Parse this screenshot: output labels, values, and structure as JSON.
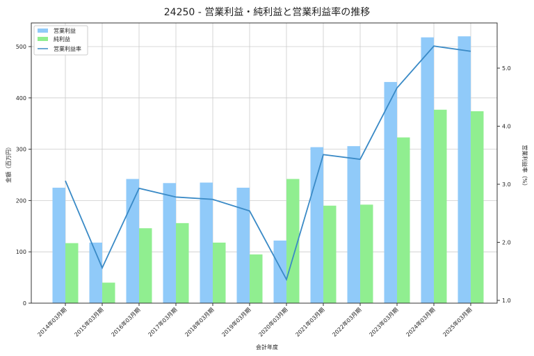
{
  "chart_data": {
    "type": "bar",
    "title": "24250 - 営業利益・純利益と営業利益率の推移",
    "xlabel": "会計年度",
    "ylabel": "金額（百万円）",
    "y2label": "営業利益率（%）",
    "categories": [
      "2014年03月期",
      "2015年03月期",
      "2016年03月期",
      "2017年03月期",
      "2018年03月期",
      "2019年03月期",
      "2020年03月期",
      "2021年03月期",
      "2022年03月期",
      "2023年03月期",
      "2024年03月期",
      "2025年03月期"
    ],
    "series": [
      {
        "name": "営業利益",
        "kind": "bar",
        "axis": "left",
        "color": "#90CAF9",
        "values": [
          225,
          118,
          242,
          234,
          235,
          225,
          122,
          304,
          306,
          431,
          518,
          520
        ]
      },
      {
        "name": "純利益",
        "kind": "bar",
        "axis": "left",
        "color": "#90EE90",
        "values": [
          117,
          40,
          146,
          156,
          118,
          95,
          242,
          190,
          192,
          323,
          377,
          374
        ]
      },
      {
        "name": "営業利益率",
        "kind": "line",
        "axis": "right",
        "color": "#3A8AC6",
        "values": [
          3.06,
          1.56,
          2.93,
          2.78,
          2.74,
          2.54,
          1.36,
          3.51,
          3.43,
          4.66,
          5.38,
          5.29
        ]
      }
    ],
    "ylim": [
      0,
      545
    ],
    "yticks": [
      0,
      100,
      200,
      300,
      400,
      500
    ],
    "y2lim": [
      0.95,
      5.8
    ],
    "y2ticks": [
      "1.0",
      "2.0",
      "3.0",
      "4.0",
      "5.0"
    ],
    "grid": true,
    "legend": "top-left"
  }
}
